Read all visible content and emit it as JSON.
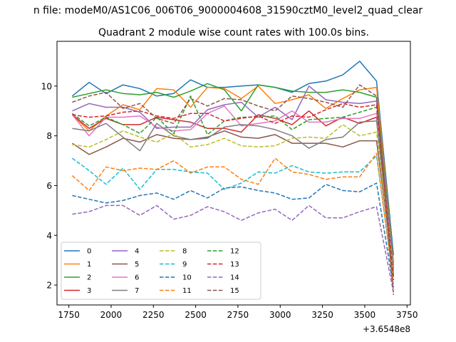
{
  "suptitle": "n file: modeM0/AS1C06_006T06_9000004608_31590cztM0_level2_quad_clear",
  "chart_data": {
    "type": "line",
    "title": "Quadrant 2 module wise count rates with 100.0s bins.",
    "xlabel": "",
    "ylabel": "",
    "x_offset_label": "+3.6548e8",
    "xlim": [
      1680,
      3770
    ],
    "ylim": [
      1.2,
      11.8
    ],
    "xticks": [
      1750,
      2000,
      2250,
      2500,
      2750,
      3000,
      3250,
      3500,
      3750
    ],
    "yticks": [
      2,
      4,
      6,
      8,
      10
    ],
    "grid": false,
    "legend_placement": "lower-left",
    "x": [
      1770,
      1870,
      1970,
      2070,
      2170,
      2270,
      2370,
      2470,
      2570,
      2670,
      2770,
      2870,
      2970,
      3070,
      3170,
      3270,
      3370,
      3470,
      3570,
      3670
    ],
    "series": [
      {
        "name": "0",
        "color": "#1f77b4",
        "dash": "solid",
        "values": [
          9.6,
          10.15,
          9.7,
          10.05,
          9.9,
          9.6,
          9.7,
          10.25,
          9.95,
          9.95,
          10.0,
          10.05,
          9.95,
          9.75,
          10.1,
          10.2,
          10.45,
          11.0,
          10.2,
          3.2
        ]
      },
      {
        "name": "1",
        "color": "#ff7f0e",
        "dash": "solid",
        "values": [
          8.85,
          8.2,
          8.8,
          9.25,
          9.05,
          9.9,
          9.85,
          9.15,
          9.95,
          9.9,
          9.5,
          10.0,
          9.3,
          9.45,
          9.65,
          9.1,
          9.5,
          9.85,
          9.95,
          2.9
        ]
      },
      {
        "name": "2",
        "color": "#2ca02c",
        "dash": "solid",
        "values": [
          9.55,
          9.7,
          9.85,
          9.7,
          9.65,
          9.75,
          9.55,
          9.8,
          10.1,
          9.85,
          9.0,
          10.05,
          9.95,
          9.8,
          9.75,
          9.75,
          9.85,
          9.75,
          9.55,
          2.8
        ]
      },
      {
        "name": "3",
        "color": "#d62728",
        "dash": "solid",
        "values": [
          8.85,
          8.3,
          8.7,
          8.45,
          8.45,
          8.75,
          8.65,
          8.55,
          8.3,
          8.3,
          8.15,
          8.85,
          8.7,
          8.45,
          9.0,
          8.4,
          8.75,
          8.5,
          8.75,
          2.7
        ]
      },
      {
        "name": "4",
        "color": "#9467bd",
        "dash": "solid",
        "values": [
          9.0,
          9.3,
          9.15,
          9.15,
          8.95,
          8.3,
          8.35,
          8.35,
          9.05,
          9.25,
          9.35,
          8.75,
          9.15,
          8.65,
          10.0,
          9.45,
          9.35,
          9.3,
          9.4,
          2.6
        ]
      },
      {
        "name": "5",
        "color": "#8c564b",
        "dash": "solid",
        "values": [
          7.7,
          7.25,
          7.55,
          7.9,
          7.75,
          8.05,
          7.9,
          7.85,
          7.95,
          8.2,
          7.95,
          7.9,
          8.05,
          7.7,
          7.7,
          7.7,
          7.55,
          7.8,
          7.8,
          2.5
        ]
      },
      {
        "name": "6",
        "color": "#e377c2",
        "dash": "solid",
        "values": [
          8.85,
          8.0,
          8.75,
          8.75,
          8.8,
          8.35,
          8.2,
          8.25,
          8.9,
          9.2,
          8.4,
          8.5,
          8.6,
          9.0,
          8.55,
          8.55,
          8.7,
          8.7,
          8.9,
          2.6
        ]
      },
      {
        "name": "7",
        "color": "#7f7f7f",
        "dash": "solid",
        "values": [
          8.3,
          8.2,
          8.5,
          7.95,
          7.4,
          8.5,
          8.0,
          7.85,
          7.9,
          8.35,
          8.45,
          8.4,
          8.25,
          8.0,
          7.5,
          7.85,
          7.95,
          8.55,
          8.6,
          2.4
        ]
      },
      {
        "name": "8",
        "color": "#bcbd22",
        "dash": "dashed",
        "values": [
          7.65,
          7.55,
          7.85,
          8.2,
          7.95,
          7.75,
          8.1,
          7.55,
          7.65,
          7.9,
          7.6,
          7.55,
          7.6,
          7.9,
          7.95,
          7.9,
          8.45,
          8.0,
          8.15,
          2.5
        ]
      },
      {
        "name": "9",
        "color": "#17becf",
        "dash": "dashed",
        "values": [
          7.1,
          6.6,
          6.05,
          6.7,
          5.85,
          6.65,
          6.65,
          6.55,
          6.5,
          5.85,
          6.1,
          6.55,
          6.5,
          6.8,
          6.55,
          6.5,
          6.55,
          6.55,
          7.2,
          2.2
        ]
      },
      {
        "name": "10",
        "color": "#1f77b4",
        "dash": "dashed",
        "values": [
          5.6,
          5.45,
          5.3,
          5.4,
          5.6,
          5.7,
          5.45,
          5.8,
          5.5,
          5.9,
          5.95,
          5.8,
          5.7,
          5.45,
          5.5,
          6.05,
          5.8,
          5.75,
          6.1,
          1.9
        ]
      },
      {
        "name": "11",
        "color": "#ff7f0e",
        "dash": "dashed",
        "values": [
          6.4,
          5.8,
          6.75,
          6.6,
          6.7,
          6.65,
          7.0,
          6.5,
          6.75,
          6.75,
          6.25,
          6.05,
          7.1,
          6.55,
          6.45,
          6.25,
          6.35,
          6.35,
          7.3,
          2.0
        ]
      },
      {
        "name": "12",
        "color": "#2ca02c",
        "dash": "dashed",
        "values": [
          8.9,
          8.4,
          8.75,
          8.45,
          8.1,
          8.75,
          8.1,
          9.6,
          8.05,
          8.6,
          8.75,
          8.75,
          8.8,
          8.25,
          8.65,
          8.7,
          8.75,
          8.95,
          9.15,
          2.3
        ]
      },
      {
        "name": "13",
        "color": "#d62728",
        "dash": "dashed",
        "values": [
          8.85,
          8.75,
          8.8,
          8.95,
          9.0,
          8.8,
          8.7,
          8.9,
          8.9,
          8.6,
          8.7,
          8.8,
          8.5,
          8.8,
          8.75,
          9.05,
          9.3,
          9.15,
          9.25,
          2.2
        ]
      },
      {
        "name": "14",
        "color": "#9467bd",
        "dash": "dashed",
        "values": [
          4.85,
          4.95,
          5.2,
          5.2,
          4.8,
          5.2,
          4.65,
          4.8,
          5.15,
          4.95,
          4.6,
          4.9,
          5.05,
          4.6,
          5.2,
          4.7,
          4.7,
          4.95,
          5.15,
          1.7
        ]
      },
      {
        "name": "15",
        "color": "#8c564b",
        "dash": "dashed",
        "values": [
          9.35,
          9.6,
          9.75,
          9.1,
          9.3,
          8.7,
          8.5,
          9.5,
          9.2,
          9.5,
          9.45,
          9.2,
          9.0,
          9.6,
          9.5,
          9.35,
          9.15,
          10.05,
          9.6,
          1.6
        ]
      }
    ]
  }
}
